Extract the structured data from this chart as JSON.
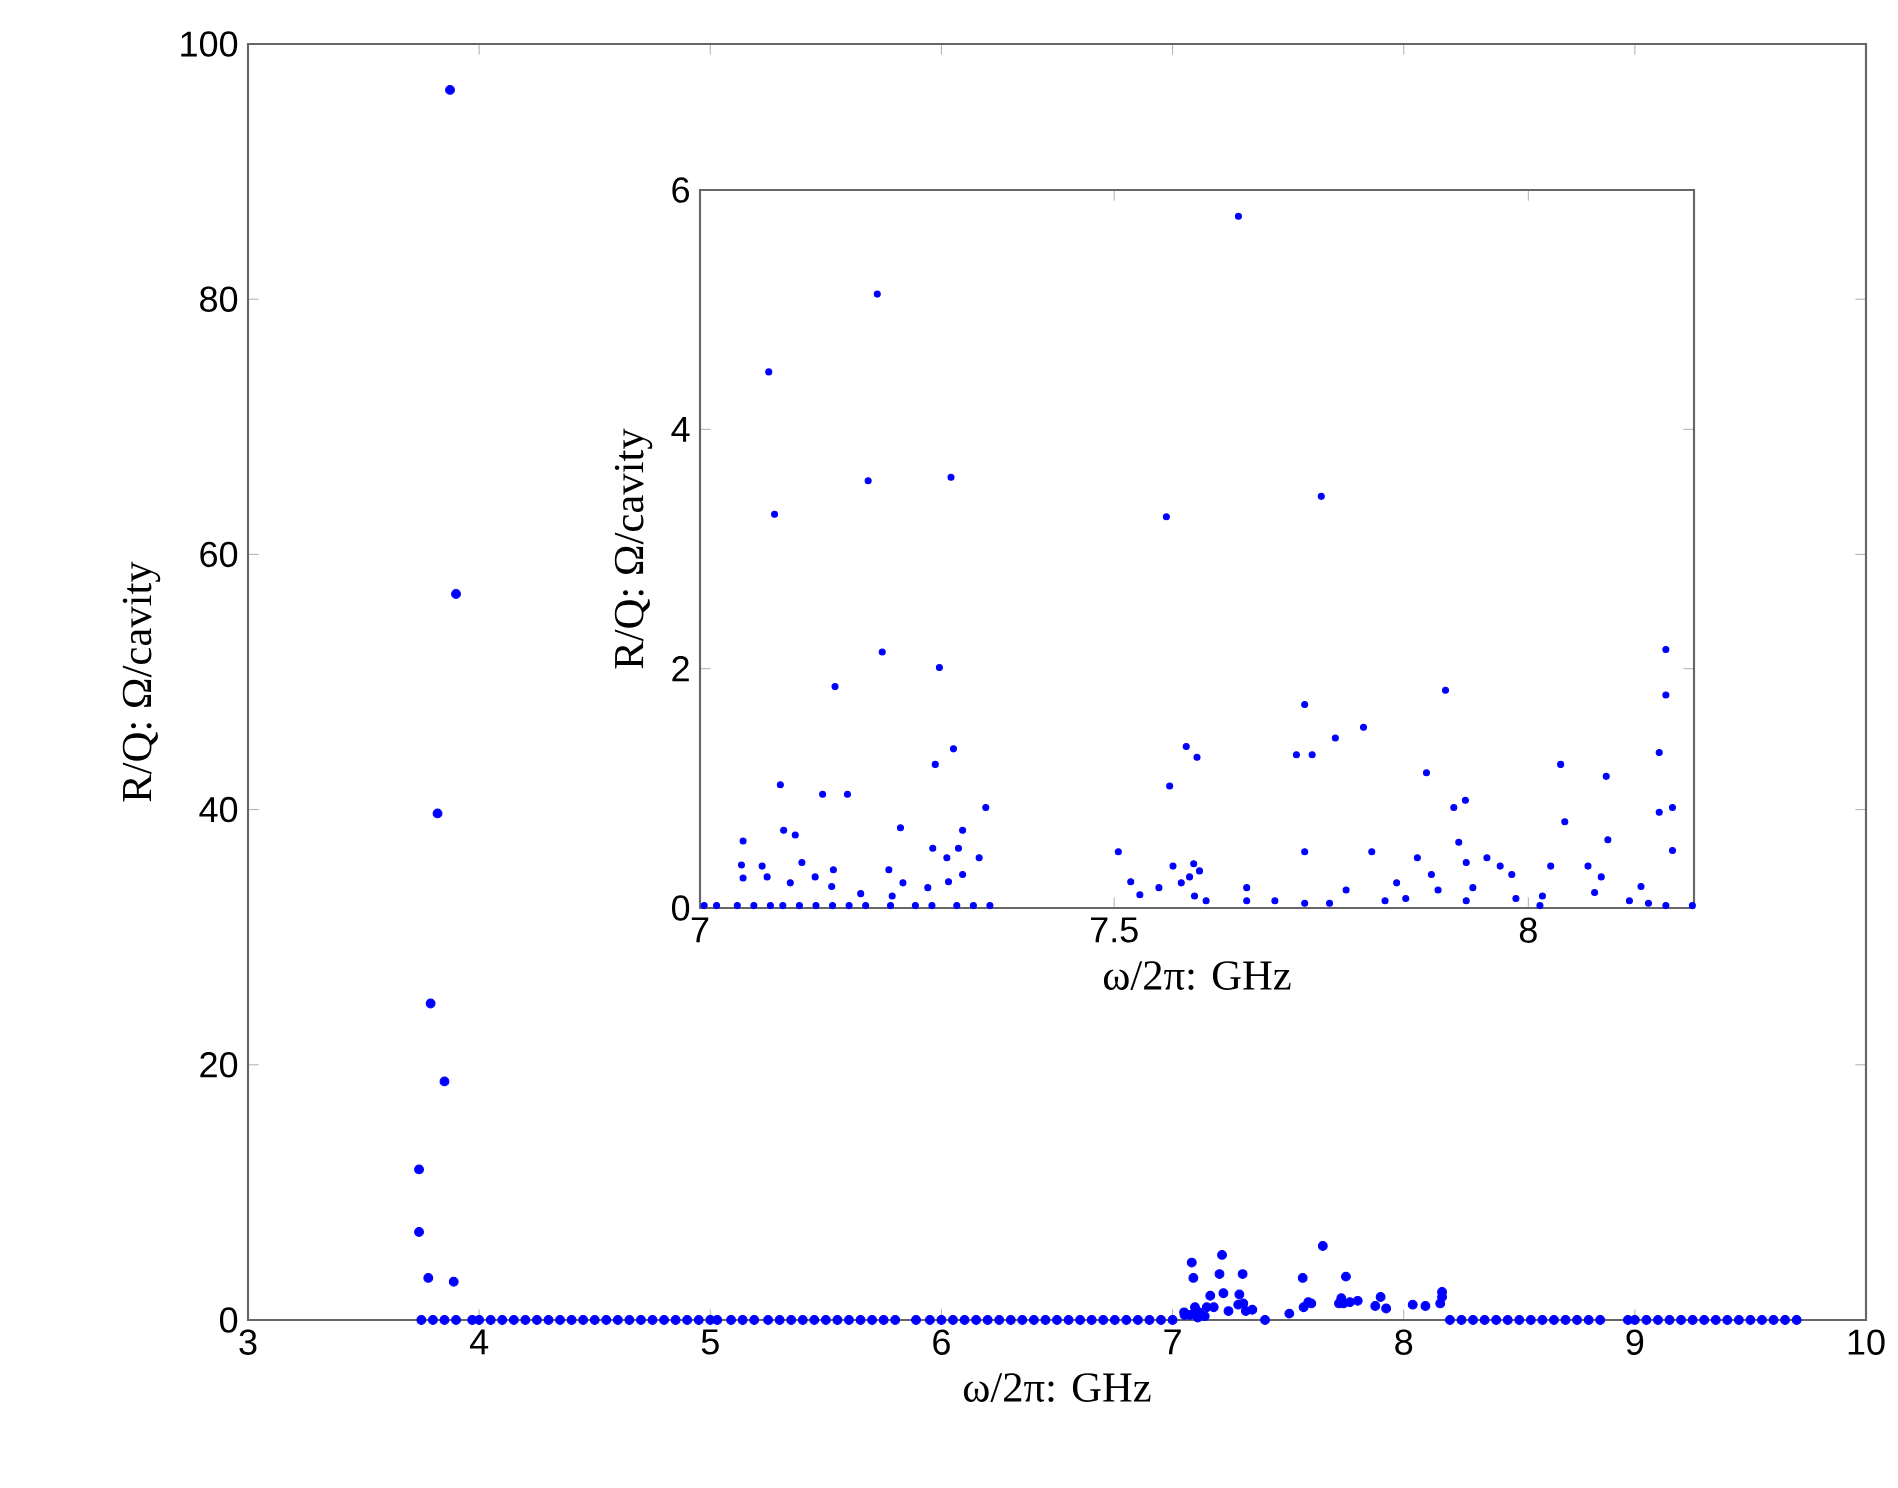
{
  "chart_data": [
    {
      "type": "scatter",
      "xlabel": "ω/2π: GHz",
      "ylabel": "R/Q: Ω/cavity",
      "color": "#0000ff",
      "xlim": [
        3,
        10
      ],
      "ylim": [
        0,
        100
      ],
      "xticks": [
        3,
        4,
        5,
        6,
        7,
        8,
        9,
        10
      ],
      "yticks": [
        0,
        20,
        40,
        60,
        80,
        100
      ],
      "x": [
        3.874,
        3.9,
        3.82,
        3.79,
        3.85,
        3.74,
        3.74,
        3.78,
        3.89,
        3.75,
        3.8,
        3.85,
        3.9,
        3.97,
        4.0,
        4.05,
        4.1,
        4.15,
        4.2,
        4.25,
        4.3,
        4.35,
        4.4,
        4.45,
        4.5,
        4.55,
        4.6,
        4.65,
        4.7,
        4.75,
        4.8,
        4.85,
        4.9,
        4.95,
        5.0,
        5.03,
        5.09,
        5.14,
        5.19,
        5.25,
        5.3,
        5.35,
        5.4,
        5.45,
        5.5,
        5.55,
        5.6,
        5.65,
        5.7,
        5.75,
        5.8,
        5.89,
        5.95,
        6.0,
        6.05,
        6.1,
        6.15,
        6.2,
        6.25,
        6.3,
        6.35,
        6.4,
        6.45,
        6.5,
        6.55,
        6.6,
        6.65,
        6.7,
        6.75,
        6.8,
        6.85,
        6.9,
        6.95,
        7.0,
        7.083,
        7.09,
        7.097,
        7.101,
        7.115,
        7.05,
        7.052,
        7.075,
        7.109,
        7.139,
        7.148,
        7.163,
        7.178,
        7.203,
        7.214,
        7.22,
        7.242,
        7.284,
        7.289,
        7.303,
        7.306,
        7.317,
        7.345,
        7.4,
        7.505,
        7.563,
        7.567,
        7.587,
        7.6,
        7.65,
        7.72,
        7.73,
        7.739,
        7.75,
        7.767,
        7.801,
        7.877,
        7.9,
        7.924,
        8.039,
        8.094,
        8.158,
        8.166,
        8.166,
        8.2,
        8.25,
        8.3,
        8.35,
        8.4,
        8.45,
        8.5,
        8.55,
        8.6,
        8.65,
        8.7,
        8.75,
        8.8,
        8.85,
        8.97,
        9.0,
        9.05,
        9.1,
        9.15,
        9.2,
        9.25,
        9.3,
        9.35,
        9.4,
        9.45,
        9.5,
        9.55,
        9.6,
        9.65,
        9.7
      ],
      "values": [
        96.4,
        56.9,
        39.7,
        24.8,
        18.7,
        11.8,
        6.9,
        3.3,
        3.0,
        0,
        0,
        0,
        0,
        0,
        0,
        0,
        0,
        0,
        0,
        0,
        0,
        0,
        0,
        0,
        0,
        0,
        0,
        0,
        0,
        0,
        0,
        0,
        0,
        0,
        0,
        0,
        0,
        0,
        0,
        0,
        0,
        0,
        0,
        0,
        0,
        0,
        0,
        0,
        0,
        0,
        0,
        0,
        0,
        0,
        0,
        0,
        0,
        0,
        0,
        0,
        0,
        0,
        0,
        0,
        0,
        0,
        0,
        0,
        0,
        0,
        0,
        0,
        0,
        0,
        4.5,
        3.3,
        1.0,
        0.7,
        0.6,
        0.6,
        0.4,
        0.4,
        0.2,
        0.3,
        1.0,
        1.9,
        1.0,
        3.6,
        5.1,
        2.1,
        0.7,
        1.2,
        2.0,
        3.6,
        1.3,
        0.7,
        0.8,
        0,
        0.5,
        3.3,
        1.0,
        1.4,
        1.3,
        5.8,
        1.3,
        1.7,
        1.3,
        3.4,
        1.4,
        1.5,
        1.1,
        1.8,
        0.9,
        1.2,
        1.1,
        1.3,
        2.2,
        1.8,
        0,
        0,
        0,
        0,
        0,
        0,
        0,
        0,
        0,
        0,
        0,
        0,
        0,
        0,
        0,
        0,
        0,
        0,
        0,
        0,
        0,
        0,
        0,
        0,
        0,
        0,
        0,
        0,
        0,
        0
      ]
    },
    {
      "type": "scatter",
      "xlabel": "ω/2π: GHz",
      "ylabel": "R/Q: Ω/cavity",
      "color": "#0000ff",
      "xlim": [
        7,
        8.2
      ],
      "ylim": [
        0,
        6
      ],
      "xticks": [
        7,
        7.5,
        8
      ],
      "yticks": [
        0,
        2,
        4,
        6
      ],
      "x": [
        7.083,
        7.09,
        7.097,
        7.101,
        7.115,
        7.052,
        7.05,
        7.052,
        7.075,
        7.081,
        7.109,
        7.123,
        7.139,
        7.148,
        7.163,
        7.161,
        7.159,
        7.178,
        7.194,
        7.203,
        7.214,
        7.22,
        7.228,
        7.232,
        7.242,
        7.245,
        7.275,
        7.281,
        7.284,
        7.289,
        7.298,
        7.3,
        7.303,
        7.306,
        7.312,
        7.317,
        7.317,
        7.337,
        7.345,
        7.005,
        7.02,
        7.045,
        7.065,
        7.085,
        7.1,
        7.12,
        7.14,
        7.16,
        7.18,
        7.2,
        7.23,
        7.26,
        7.28,
        7.31,
        7.33,
        7.35,
        7.505,
        7.52,
        7.531,
        7.554,
        7.563,
        7.567,
        7.571,
        7.581,
        7.587,
        7.591,
        7.596,
        7.6,
        7.603,
        7.597,
        7.611,
        7.65,
        7.66,
        7.66,
        7.694,
        7.72,
        7.73,
        7.73,
        7.73,
        7.739,
        7.75,
        7.76,
        7.767,
        7.78,
        7.801,
        7.811,
        7.827,
        7.841,
        7.852,
        7.866,
        7.877,
        7.883,
        7.891,
        7.9,
        7.91,
        7.916,
        7.924,
        7.925,
        7.925,
        7.933,
        7.95,
        7.966,
        7.98,
        7.985,
        8.014,
        8.017,
        8.027,
        8.039,
        8.044,
        8.072,
        8.08,
        8.088,
        8.094,
        8.096,
        8.122,
        8.136,
        8.145,
        8.158,
        8.158,
        8.166,
        8.166,
        8.174,
        8.174,
        8.166,
        8.198
      ],
      "values": [
        4.48,
        3.29,
        1.03,
        0.65,
        0.61,
        0.56,
        0.36,
        0.25,
        0.35,
        0.26,
        0.21,
        0.38,
        0.26,
        0.95,
        1.85,
        0.32,
        0.18,
        0.95,
        0.12,
        3.57,
        5.13,
        2.14,
        0.32,
        0.1,
        0.67,
        0.21,
        0.17,
        0.5,
        1.2,
        2.01,
        0.42,
        0.22,
        3.6,
        1.33,
        0.5,
        0.65,
        0.28,
        0.42,
        0.84,
        0.02,
        0.02,
        0.02,
        0.02,
        0.02,
        0.02,
        0.02,
        0.02,
        0.02,
        0.02,
        0.02,
        0.02,
        0.02,
        0.02,
        0.02,
        0.02,
        0.02,
        0.47,
        0.22,
        0.11,
        0.17,
        3.27,
        1.02,
        0.35,
        0.21,
        1.35,
        0.26,
        0.37,
        1.26,
        0.31,
        0.1,
        0.06,
        5.78,
        0.17,
        0.06,
        0.06,
        1.28,
        1.7,
        0.47,
        0.04,
        1.28,
        3.44,
        0.04,
        1.42,
        0.15,
        1.51,
        0.47,
        0.06,
        0.21,
        0.08,
        0.42,
        1.13,
        0.28,
        0.15,
        1.82,
        0.84,
        0.55,
        0.9,
        0.38,
        0.06,
        0.17,
        0.42,
        0.35,
        0.28,
        0.08,
        0.02,
        0.1,
        0.35,
        1.2,
        0.72,
        0.35,
        0.13,
        0.26,
        1.1,
        0.57,
        0.06,
        0.18,
        0.04,
        1.3,
        0.8,
        2.16,
        1.78,
        0.84,
        0.48,
        0.02,
        0.02
      ]
    }
  ]
}
